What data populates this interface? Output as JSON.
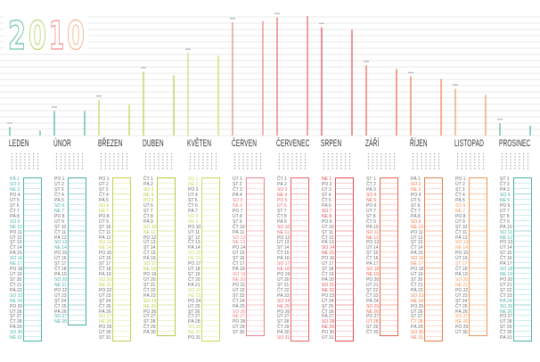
{
  "title": {
    "digits": [
      "2",
      "0",
      "1",
      "0"
    ],
    "colors": [
      "#6fc4a6",
      "#b8d772",
      "#ef8a8a",
      "#f5b491"
    ]
  },
  "months": [
    {
      "name": "LEDEN",
      "color": "#4bb3a6",
      "days": [
        "PÁ 1",
        "SO 2",
        "NE 3",
        "PO 4",
        "ÚT 5",
        "ST 6",
        "ČT 7",
        "PÁ 8",
        "SO 9",
        "NE 10",
        "PO 11",
        "ÚT 12",
        "ST 13",
        "ČT 14",
        "PÁ 15",
        "SO 16",
        "NE 17",
        "PO 18",
        "ÚT 19",
        "ST 20",
        "ČT 21",
        "PÁ 22",
        "SO 23",
        "NE 24",
        "PO 25",
        "ÚT 26",
        "ST 27",
        "ČT 28",
        "PÁ 29",
        "SO 30",
        "NE 31"
      ],
      "highlight": [
        1,
        2,
        3,
        9,
        10,
        16,
        17,
        23,
        24,
        30,
        31
      ]
    },
    {
      "name": "ÚNOR",
      "color": "#49ada4",
      "days": [
        "PO 1",
        "ÚT 2",
        "ST 3",
        "ČT 4",
        "PÁ 5",
        "SO 6",
        "NE 7",
        "PO 8",
        "ÚT 9",
        "ST 10",
        "ČT 11",
        "PÁ 12",
        "SO 13",
        "NE 14",
        "PO 15",
        "ÚT 16",
        "ST 17",
        "ČT 18",
        "PÁ 19",
        "SO 20",
        "NE 21",
        "PO 22",
        "ÚT 23",
        "ST 24",
        "ČT 25",
        "PÁ 26",
        "SO 27",
        "NE 28"
      ],
      "highlight": [
        6,
        7,
        13,
        14,
        20,
        21,
        27,
        28
      ]
    },
    {
      "name": "BŘEZEN",
      "color": "#c4d14a",
      "days": [
        "PO 1",
        "ÚT 2",
        "ST 3",
        "ČT 4",
        "PÁ 5",
        "SO 6",
        "NE 7",
        "PO 8",
        "ÚT 9",
        "ST 10",
        "ČT 11",
        "PÁ 12",
        "SO 13",
        "NE 14",
        "PO 15",
        "ÚT 16",
        "ST 17",
        "ČT 18",
        "PÁ 19",
        "SO 20",
        "NE 21",
        "PO 22",
        "ÚT 23",
        "ST 24",
        "ČT 25",
        "PÁ 26",
        "SO 27",
        "NE 28",
        "PO 29",
        "ÚT 30",
        "ST 31"
      ],
      "highlight": [
        6,
        7,
        13,
        14,
        20,
        21,
        27,
        28
      ]
    },
    {
      "name": "DUBEN",
      "color": "#b4cb48",
      "days": [
        "ČT 1",
        "PÁ 2",
        "SO 3",
        "NE 4",
        "PO 5",
        "ÚT 6",
        "ST 7",
        "ČT 8",
        "PÁ 9",
        "SO 10",
        "NE 11",
        "PO 12",
        "ÚT 13",
        "ST 14",
        "ČT 15",
        "PÁ 16",
        "SO 17",
        "NE 18",
        "PO 19",
        "ÚT 20",
        "ST 21",
        "ČT 22",
        "PÁ 23",
        "SO 24",
        "NE 25",
        "PO 26",
        "ÚT 27",
        "ST 28",
        "ČT 29",
        "PÁ 30"
      ],
      "highlight": [
        3,
        4,
        5,
        10,
        11,
        17,
        18,
        24,
        25
      ]
    },
    {
      "name": "KVĚTEN",
      "color": "#cbd862",
      "days": [
        "SO 1",
        "NE 2",
        "PO 3",
        "ÚT 4",
        "ST 5",
        "ČT 6",
        "PÁ 7",
        "SO 8",
        "NE 9",
        "PO 10",
        "ÚT 11",
        "ST 12",
        "ČT 13",
        "PÁ 14",
        "SO 15",
        "NE 16",
        "PO 17",
        "ÚT 18",
        "ST 19",
        "ČT 20",
        "PÁ 21",
        "SO 22",
        "NE 23",
        "PO 24",
        "ÚT 25",
        "ST 26",
        "ČT 27",
        "PÁ 28",
        "SO 29",
        "NE 30",
        "PO 31"
      ],
      "highlight": [
        1,
        2,
        8,
        9,
        15,
        16,
        22,
        23,
        29,
        30
      ]
    },
    {
      "name": "ČERVEN",
      "color": "#ea8088",
      "days": [
        "ÚT 1",
        "ST 2",
        "ČT 3",
        "PÁ 4",
        "SO 5",
        "NE 6",
        "PO 7",
        "ÚT 8",
        "ST 9",
        "ČT 10",
        "PÁ 11",
        "SO 12",
        "NE 13",
        "PO 14",
        "ÚT 15",
        "ST 16",
        "ČT 17",
        "PÁ 18",
        "SO 19",
        "NE 20",
        "PO 21",
        "ÚT 22",
        "ST 23",
        "ČT 24",
        "PÁ 25",
        "SO 26",
        "NE 27",
        "PO 28",
        "ÚT 29",
        "ST 30"
      ],
      "highlight": [
        5,
        6,
        12,
        13,
        19,
        20,
        26,
        27
      ]
    },
    {
      "name": "ČERVENEC",
      "color": "#e3636a",
      "days": [
        "ČT 1",
        "PÁ 2",
        "SO 3",
        "NE 4",
        "PO 5",
        "ÚT 6",
        "ST 7",
        "ČT 8",
        "PÁ 9",
        "SO 10",
        "NE 11",
        "PO 12",
        "ÚT 13",
        "ST 14",
        "ČT 15",
        "PÁ 16",
        "SO 17",
        "NE 18",
        "PO 19",
        "ÚT 20",
        "ST 21",
        "ČT 22",
        "PÁ 23",
        "SO 24",
        "NE 25",
        "PO 26",
        "ÚT 27",
        "ST 28",
        "ČT 29",
        "PÁ 30",
        "SO 31"
      ],
      "highlight": [
        3,
        4,
        5,
        6,
        10,
        11,
        17,
        18,
        24,
        25,
        31
      ]
    },
    {
      "name": "SRPEN",
      "color": "#dd4d53",
      "days": [
        "NE 1",
        "PO 2",
        "ÚT 3",
        "ST 4",
        "ČT 5",
        "PÁ 6",
        "SO 7",
        "NE 8",
        "PO 9",
        "ÚT 10",
        "ST 11",
        "ČT 12",
        "PÁ 13",
        "SO 14",
        "NE 15",
        "PO 16",
        "ÚT 17",
        "ST 18",
        "ČT 19",
        "PÁ 20",
        "SO 21",
        "NE 22",
        "PO 23",
        "ÚT 24",
        "ST 25",
        "ČT 26",
        "PÁ 27",
        "SO 28",
        "NE 29",
        "PO 30",
        "ÚT 31"
      ],
      "highlight": [
        1,
        7,
        8,
        14,
        15,
        21,
        22,
        28,
        29
      ]
    },
    {
      "name": "ZÁŘÍ",
      "color": "#e6654c",
      "days": [
        "ST 1",
        "ČT 2",
        "PÁ 3",
        "SO 4",
        "NE 5",
        "PO 6",
        "ÚT 7",
        "ST 8",
        "ČT 9",
        "PÁ 10",
        "SO 11",
        "NE 12",
        "PO 13",
        "ÚT 14",
        "ST 15",
        "ČT 16",
        "PÁ 17",
        "SO 18",
        "NE 19",
        "PO 20",
        "ÚT 21",
        "ST 22",
        "ČT 23",
        "PÁ 24",
        "SO 25",
        "NE 26",
        "PO 27",
        "ÚT 28",
        "ST 29",
        "ČT 30"
      ],
      "highlight": [
        4,
        5,
        11,
        12,
        18,
        19,
        25,
        26,
        28
      ]
    },
    {
      "name": "ŘÍJEN",
      "color": "#ea7a48",
      "days": [
        "PÁ 1",
        "SO 2",
        "NE 3",
        "PO 4",
        "ÚT 5",
        "ST 6",
        "ČT 7",
        "PÁ 8",
        "SO 9",
        "NE 10",
        "PO 11",
        "ÚT 12",
        "ST 13",
        "ČT 14",
        "PÁ 15",
        "SO 16",
        "NE 17",
        "PO 18",
        "ÚT 19",
        "ST 20",
        "ČT 21",
        "PÁ 22",
        "SO 23",
        "NE 24",
        "PO 25",
        "ÚT 26",
        "ST 27",
        "ČT 28",
        "PÁ 29",
        "SO 30",
        "NE 31"
      ],
      "highlight": [
        2,
        3,
        9,
        10,
        16,
        17,
        23,
        24,
        28,
        30,
        31
      ]
    },
    {
      "name": "LISTOPAD",
      "color": "#f09656",
      "days": [
        "PO 1",
        "ÚT 2",
        "ST 3",
        "ČT 4",
        "PÁ 5",
        "SO 6",
        "NE 7",
        "PO 8",
        "ÚT 9",
        "ST 10",
        "ČT 11",
        "PÁ 12",
        "SO 13",
        "NE 14",
        "PO 15",
        "ÚT 16",
        "ST 17",
        "ČT 18",
        "PÁ 19",
        "SO 20",
        "NE 21",
        "PO 22",
        "ÚT 23",
        "ST 24",
        "ČT 25",
        "PÁ 26",
        "SO 27",
        "NE 28",
        "PO 29",
        "ÚT 30"
      ],
      "highlight": [
        6,
        7,
        13,
        14,
        17,
        20,
        21,
        27,
        28
      ]
    },
    {
      "name": "PROSINEC",
      "color": "#48afa3",
      "days": [
        "ST 1",
        "ČT 2",
        "PÁ 3",
        "SO 4",
        "NE 5",
        "PO 6",
        "ÚT 7",
        "ST 8",
        "ČT 9",
        "PÁ 10",
        "SO 11",
        "NE 12",
        "PO 13",
        "ÚT 14",
        "ST 15",
        "ČT 16",
        "PÁ 17",
        "SO 18",
        "NE 19",
        "PO 20",
        "ÚT 21",
        "ST 22",
        "ČT 23",
        "PÁ 24",
        "SO 25",
        "NE 26",
        "PO 27",
        "ÚT 28",
        "ST 29",
        "ČT 30",
        "PÁ 31"
      ],
      "highlight": [
        4,
        5,
        11,
        12,
        18,
        19,
        24,
        25,
        26
      ]
    }
  ],
  "chart_data": {
    "type": "bar",
    "series": [
      {
        "values": [
          0.07,
          0.2,
          0.29,
          0.52,
          0.67,
          0.92,
          0.96,
          0.88,
          0.57,
          0.48,
          0.38,
          0.1
        ]
      },
      {
        "values": [
          0.04,
          0.2,
          0.25,
          0.49,
          0.65,
          0.93,
          0.97,
          0.86,
          0.54,
          0.46,
          0.33,
          0.08
        ]
      }
    ],
    "ylim": [
      0,
      1
    ],
    "grid": true
  }
}
